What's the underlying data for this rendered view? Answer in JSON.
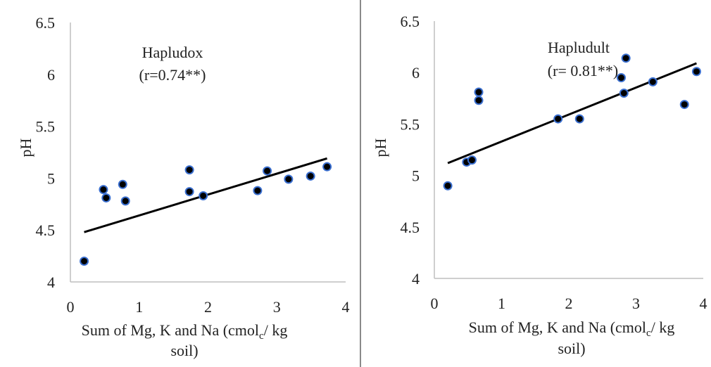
{
  "chart_data": [
    {
      "type": "scatter",
      "title": "Hapludox",
      "annotation": "(r=0.74**)",
      "xlabel_line1": "Sum of Mg, K and Na (cmol",
      "xlabel_sub": "c",
      "xlabel_line1_end": "/ kg",
      "xlabel_line2": "soil)",
      "ylabel": "pH",
      "xlim": [
        0,
        4
      ],
      "ylim": [
        4,
        6.5
      ],
      "x_ticks": [
        "0",
        "1",
        "2",
        "3",
        "4"
      ],
      "y_ticks": [
        "4",
        "4.5",
        "5",
        "5.5",
        "6",
        "6.5"
      ],
      "grid": false,
      "points": [
        {
          "x": 0.2,
          "y": 4.2
        },
        {
          "x": 0.48,
          "y": 4.89
        },
        {
          "x": 0.52,
          "y": 4.81
        },
        {
          "x": 0.76,
          "y": 4.94
        },
        {
          "x": 0.8,
          "y": 4.78
        },
        {
          "x": 1.73,
          "y": 5.08
        },
        {
          "x": 1.73,
          "y": 4.87
        },
        {
          "x": 1.93,
          "y": 4.83
        },
        {
          "x": 2.72,
          "y": 4.88
        },
        {
          "x": 2.86,
          "y": 5.07
        },
        {
          "x": 3.17,
          "y": 4.99
        },
        {
          "x": 3.49,
          "y": 5.02
        },
        {
          "x": 3.73,
          "y": 5.11
        }
      ],
      "trendline": {
        "x": [
          0.2,
          3.73
        ],
        "y": [
          4.48,
          5.19
        ]
      }
    },
    {
      "type": "scatter",
      "title": "Hapludult",
      "annotation": "(r= 0.81**)",
      "xlabel_line1": "Sum of Mg, K and Na (cmol",
      "xlabel_sub": "c",
      "xlabel_line1_end": "/ kg",
      "xlabel_line2": "soil)",
      "ylabel": "pH",
      "xlim": [
        0,
        4
      ],
      "ylim": [
        4,
        6.5
      ],
      "x_ticks": [
        "0",
        "1",
        "2",
        "3",
        "4"
      ],
      "y_ticks": [
        "4",
        "4.5",
        "5",
        "5.5",
        "6",
        "6.5"
      ],
      "grid": false,
      "points": [
        {
          "x": 0.2,
          "y": 4.9
        },
        {
          "x": 0.48,
          "y": 5.13
        },
        {
          "x": 0.56,
          "y": 5.15
        },
        {
          "x": 0.66,
          "y": 5.81
        },
        {
          "x": 0.66,
          "y": 5.73
        },
        {
          "x": 1.84,
          "y": 5.55
        },
        {
          "x": 2.16,
          "y": 5.55
        },
        {
          "x": 2.78,
          "y": 5.95
        },
        {
          "x": 2.82,
          "y": 5.8
        },
        {
          "x": 2.85,
          "y": 6.14
        },
        {
          "x": 3.25,
          "y": 5.91
        },
        {
          "x": 3.72,
          "y": 5.69
        },
        {
          "x": 3.9,
          "y": 6.01
        }
      ],
      "trendline": {
        "x": [
          0.2,
          3.9
        ],
        "y": [
          5.12,
          6.09
        ]
      }
    }
  ],
  "style": {
    "point_fill": "#000000",
    "point_stroke": "#3a6fd0",
    "line_color": "#000000",
    "axis_color": "#bfbfbf",
    "divider_color": "#8a8a8a"
  }
}
